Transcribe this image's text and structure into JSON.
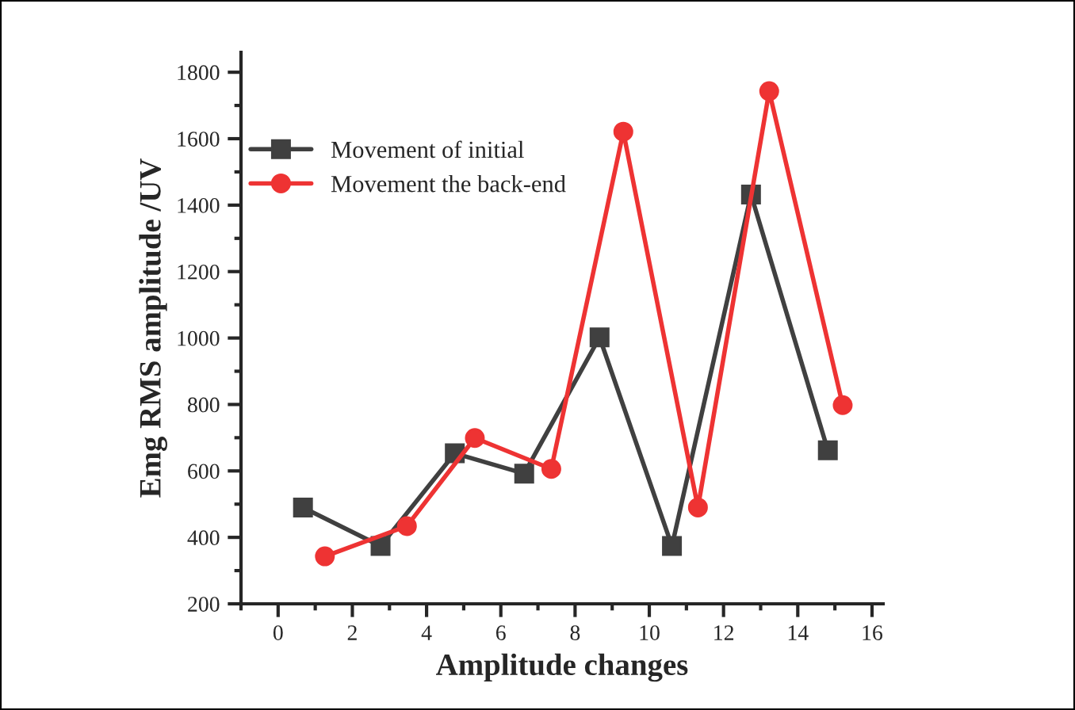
{
  "chart_data": {
    "type": "line",
    "xlabel": "Amplitude changes",
    "ylabel": "Emg RMS amplitude /UV",
    "xlim": [
      -1,
      16.3
    ],
    "xticks": [
      0,
      2,
      4,
      6,
      8,
      10,
      12,
      14,
      16
    ],
    "ylim": [
      200,
      1860
    ],
    "yticks": [
      200,
      400,
      600,
      800,
      1000,
      1200,
      1400,
      1600,
      1800
    ],
    "grid": false,
    "legend": "top left",
    "series": [
      {
        "name": "Movement of initial",
        "color": "#404040",
        "marker": "square",
        "x": [
          0.67,
          2.76,
          4.76,
          6.63,
          8.66,
          10.61,
          12.74,
          14.81
        ],
        "values": [
          490,
          374,
          653,
          592,
          1002,
          374,
          1432,
          662
        ]
      },
      {
        "name": "Movement the back-end",
        "color": "#ee3333",
        "marker": "circle",
        "x": [
          1.26,
          3.47,
          5.3,
          7.36,
          9.3,
          11.31,
          13.23,
          15.21
        ],
        "values": [
          343,
          434,
          699,
          606,
          1621,
          490,
          1743,
          798
        ]
      }
    ]
  }
}
